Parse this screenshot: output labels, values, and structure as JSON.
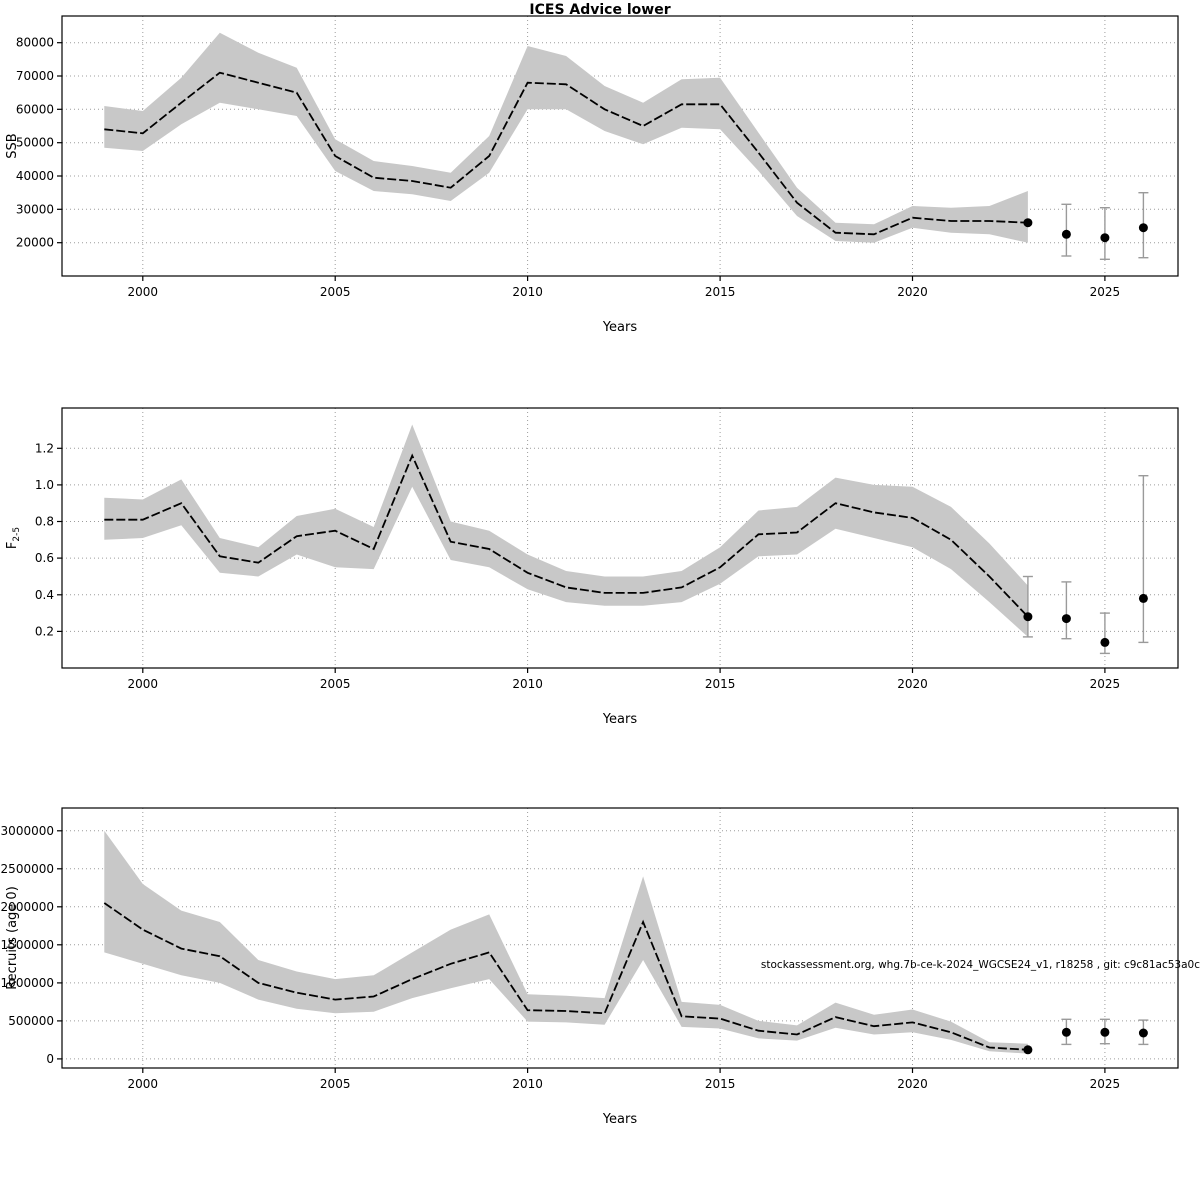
{
  "figure": {
    "title": "ICES Advice lower",
    "watermark": "stockassessment.org, whg.7b-ce-k-2024_WGCSE24_v1, r18258 , git: c9c81ac53a0c",
    "colors": {
      "band": "#c8c8c8",
      "line": "#000000",
      "point": "#000000",
      "errorbar": "#9a9a9a",
      "grid": "#9c9c9c",
      "axis": "#000000"
    }
  },
  "chart_data": [
    {
      "type": "line",
      "title": "ICES Advice lower",
      "ylabel": "SSB",
      "xlabel": "Years",
      "legend": "none",
      "grid": "dotted",
      "xlim": [
        1997.9,
        2026.9
      ],
      "ylim": [
        10000,
        88000
      ],
      "xticks": [
        2000,
        2005,
        2010,
        2015,
        2020,
        2025
      ],
      "xticklabels": [
        "2000",
        "2005",
        "2010",
        "2015",
        "2020",
        "2025"
      ],
      "yticks": [
        20000,
        30000,
        40000,
        50000,
        60000,
        70000,
        80000
      ],
      "yticklabels": [
        "20000",
        "30000",
        "40000",
        "50000",
        "60000",
        "70000",
        "80000"
      ],
      "x": [
        1999,
        2000,
        2001,
        2002,
        2003,
        2004,
        2005,
        2006,
        2007,
        2008,
        2009,
        2010,
        2011,
        2012,
        2013,
        2014,
        2015,
        2016,
        2017,
        2018,
        2019,
        2020,
        2021,
        2022,
        2023
      ],
      "mean": [
        54000,
        52800,
        62000,
        71000,
        68000,
        65000,
        46000,
        39500,
        38500,
        36500,
        46000,
        68000,
        67500,
        60000,
        55000,
        61500,
        61500,
        47000,
        32000,
        23000,
        22500,
        27500,
        26500,
        26500,
        26000
      ],
      "low": [
        48500,
        47500,
        55500,
        62000,
        60000,
        58000,
        41500,
        35500,
        34500,
        32500,
        41000,
        60000,
        60000,
        53500,
        49500,
        54500,
        54000,
        41500,
        28000,
        20500,
        20000,
        24500,
        23000,
        22500,
        20000
      ],
      "high": [
        61000,
        59500,
        69500,
        83000,
        77000,
        72500,
        51000,
        44500,
        43000,
        41000,
        52000,
        79000,
        76000,
        67000,
        62000,
        69000,
        69500,
        53000,
        36500,
        26000,
        25500,
        31000,
        30500,
        31000,
        35500
      ],
      "points": [
        {
          "x": 2023,
          "y": 26000,
          "low": null,
          "high": null
        },
        {
          "x": 2024,
          "y": 22500,
          "low": 16000,
          "high": 31500
        },
        {
          "x": 2025,
          "y": 21500,
          "low": 15000,
          "high": 30500
        },
        {
          "x": 2026,
          "y": 24500,
          "low": 15500,
          "high": 35000
        }
      ]
    },
    {
      "type": "line",
      "title": "",
      "ylabel": "F",
      "ylabel_sub": "2-5",
      "xlabel": "Years",
      "legend": "none",
      "grid": "dotted",
      "xlim": [
        1997.9,
        2026.9
      ],
      "ylim": [
        0,
        1.42
      ],
      "xticks": [
        2000,
        2005,
        2010,
        2015,
        2020,
        2025
      ],
      "xticklabels": [
        "2000",
        "2005",
        "2010",
        "2015",
        "2020",
        "2025"
      ],
      "yticks": [
        0.2,
        0.4,
        0.6,
        0.8,
        1.0,
        1.2
      ],
      "yticklabels": [
        "0.2",
        "0.4",
        "0.6",
        "0.8",
        "1.0",
        "1.2"
      ],
      "x": [
        1999,
        2000,
        2001,
        2002,
        2003,
        2004,
        2005,
        2006,
        2007,
        2008,
        2009,
        2010,
        2011,
        2012,
        2013,
        2014,
        2015,
        2016,
        2017,
        2018,
        2019,
        2020,
        2021,
        2022,
        2023
      ],
      "mean": [
        0.81,
        0.81,
        0.9,
        0.61,
        0.575,
        0.72,
        0.75,
        0.65,
        1.16,
        0.69,
        0.65,
        0.52,
        0.44,
        0.41,
        0.41,
        0.44,
        0.55,
        0.73,
        0.74,
        0.9,
        0.85,
        0.82,
        0.7,
        0.5,
        0.28
      ],
      "low": [
        0.7,
        0.71,
        0.78,
        0.52,
        0.5,
        0.62,
        0.55,
        0.54,
        0.99,
        0.59,
        0.55,
        0.43,
        0.36,
        0.34,
        0.34,
        0.36,
        0.46,
        0.61,
        0.62,
        0.76,
        0.71,
        0.66,
        0.54,
        0.36,
        0.17
      ],
      "high": [
        0.93,
        0.92,
        1.03,
        0.71,
        0.66,
        0.83,
        0.87,
        0.77,
        1.33,
        0.8,
        0.75,
        0.62,
        0.53,
        0.5,
        0.5,
        0.53,
        0.66,
        0.86,
        0.88,
        1.04,
        1.0,
        0.99,
        0.88,
        0.68,
        0.45
      ],
      "points": [
        {
          "x": 2023,
          "y": 0.28,
          "low": 0.17,
          "high": 0.5
        },
        {
          "x": 2024,
          "y": 0.27,
          "low": 0.16,
          "high": 0.47
        },
        {
          "x": 2025,
          "y": 0.14,
          "low": 0.08,
          "high": 0.3
        },
        {
          "x": 2026,
          "y": 0.38,
          "low": 0.14,
          "high": 1.05
        }
      ]
    },
    {
      "type": "line",
      "title": "",
      "ylabel": "Recruits (age 0)",
      "xlabel": "Years",
      "legend": "none",
      "grid": "dotted",
      "xlim": [
        1997.9,
        2026.9
      ],
      "ylim": [
        -120000,
        3300000
      ],
      "xticks": [
        2000,
        2005,
        2010,
        2015,
        2020,
        2025
      ],
      "xticklabels": [
        "2000",
        "2005",
        "2010",
        "2015",
        "2020",
        "2025"
      ],
      "yticks": [
        0,
        500000,
        1000000,
        1500000,
        2000000,
        2500000,
        3000000
      ],
      "yticklabels": [
        "0",
        "500000",
        "1000000",
        "1500000",
        "2000000",
        "2500000",
        "3000000"
      ],
      "x": [
        1999,
        2000,
        2001,
        2002,
        2003,
        2004,
        2005,
        2006,
        2007,
        2008,
        2009,
        2010,
        2011,
        2012,
        2013,
        2014,
        2015,
        2016,
        2017,
        2018,
        2019,
        2020,
        2021,
        2022,
        2023
      ],
      "mean": [
        2050000,
        1700000,
        1450000,
        1350000,
        1000000,
        870000,
        780000,
        820000,
        1050000,
        1250000,
        1400000,
        640000,
        630000,
        600000,
        1800000,
        560000,
        530000,
        370000,
        320000,
        550000,
        430000,
        480000,
        350000,
        150000,
        120000
      ],
      "low": [
        1400000,
        1250000,
        1100000,
        1000000,
        780000,
        660000,
        600000,
        620000,
        800000,
        930000,
        1050000,
        490000,
        480000,
        450000,
        1300000,
        420000,
        400000,
        270000,
        240000,
        410000,
        320000,
        350000,
        250000,
        100000,
        70000
      ],
      "high": [
        3000000,
        2300000,
        1950000,
        1800000,
        1300000,
        1150000,
        1050000,
        1100000,
        1400000,
        1700000,
        1900000,
        850000,
        830000,
        800000,
        2400000,
        750000,
        710000,
        500000,
        440000,
        740000,
        580000,
        650000,
        490000,
        220000,
        200000
      ],
      "points": [
        {
          "x": 2023,
          "y": 120000,
          "low": null,
          "high": null
        },
        {
          "x": 2024,
          "y": 350000,
          "low": 190000,
          "high": 520000
        },
        {
          "x": 2025,
          "y": 350000,
          "low": 200000,
          "high": 520000
        },
        {
          "x": 2026,
          "y": 340000,
          "low": 190000,
          "high": 510000
        }
      ]
    }
  ]
}
